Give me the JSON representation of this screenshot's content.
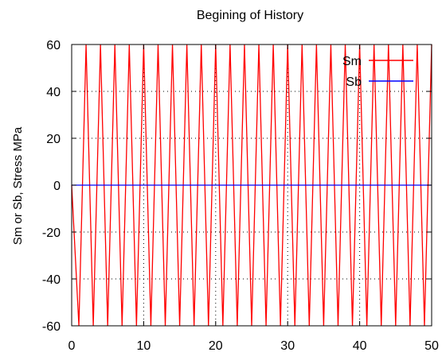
{
  "chart_data": {
    "type": "line",
    "title": "Begining of History",
    "xlabel": "",
    "ylabel": "Sm or Sb, Stress MPa",
    "xlim": [
      0,
      50
    ],
    "ylim": [
      -60,
      60
    ],
    "x_ticks": [
      "0",
      "10",
      "20",
      "30",
      "40",
      "50"
    ],
    "y_ticks": [
      "60",
      "40",
      "20",
      "0",
      "-20",
      "-40",
      "-60"
    ],
    "grid": true,
    "legend_position": "top-right",
    "series": [
      {
        "name": "Sm",
        "color": "#ff0000",
        "x": [
          0,
          1,
          2,
          3,
          4,
          5,
          6,
          7,
          8,
          9,
          10,
          11,
          12,
          13,
          14,
          15,
          16,
          17,
          18,
          19,
          20,
          21,
          22,
          23,
          24,
          25,
          26,
          27,
          28,
          29,
          30,
          31,
          32,
          33,
          34,
          35,
          36,
          37,
          38,
          39,
          40,
          41,
          42,
          43,
          44,
          45,
          46,
          47,
          48,
          49,
          50
        ],
        "y": [
          0,
          -60,
          60,
          -60,
          60,
          -60,
          60,
          -60,
          60,
          -60,
          60,
          -60,
          60,
          -60,
          60,
          -60,
          60,
          -60,
          60,
          -60,
          60,
          -60,
          60,
          -60,
          60,
          -60,
          60,
          -60,
          60,
          -60,
          60,
          -60,
          60,
          -60,
          60,
          -60,
          60,
          -60,
          60,
          -60,
          60,
          -60,
          60,
          -60,
          60,
          -60,
          60,
          -60,
          60,
          -60,
          60
        ]
      },
      {
        "name": "Sb",
        "color": "#0000ff",
        "x": [
          0,
          50
        ],
        "y": [
          0,
          0
        ]
      }
    ]
  }
}
